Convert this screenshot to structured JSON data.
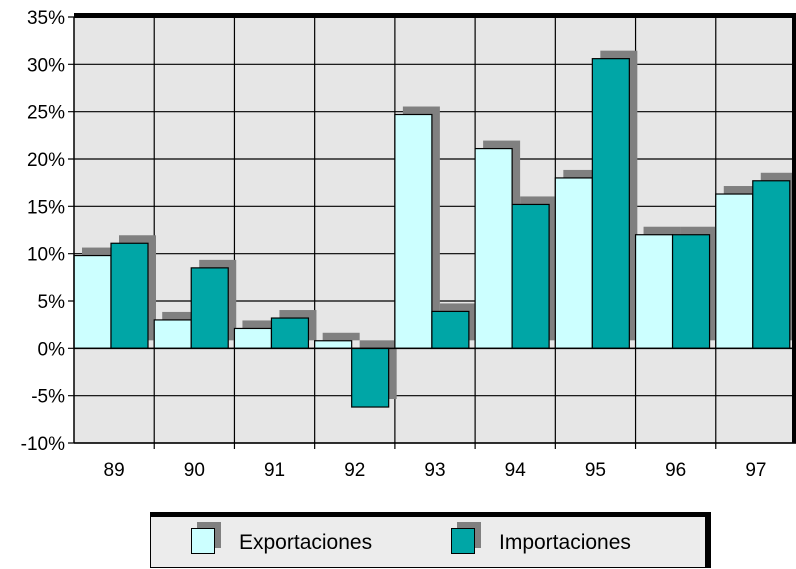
{
  "chart_data": {
    "type": "bar",
    "categories": [
      "89",
      "90",
      "91",
      "92",
      "93",
      "94",
      "95",
      "96",
      "97"
    ],
    "series": [
      {
        "name": "Exportaciones",
        "values": [
          9.8,
          3.0,
          2.1,
          0.8,
          24.7,
          21.1,
          18.0,
          12.0,
          16.3
        ],
        "color": "#ccffff"
      },
      {
        "name": "Importaciones",
        "values": [
          11.1,
          8.5,
          3.2,
          -6.2,
          3.9,
          15.2,
          30.6,
          12.0,
          17.7
        ],
        "color": "#00a6a6"
      }
    ],
    "ylim": [
      -10,
      35
    ],
    "yticks": [
      "35%",
      "30%",
      "25%",
      "20%",
      "15%",
      "10%",
      "5%",
      "0%",
      "-5%",
      "-10%"
    ],
    "ytick_values": [
      35,
      30,
      25,
      20,
      15,
      10,
      5,
      0,
      -5,
      -10
    ],
    "grid": true,
    "plot_background": "#e6e6e6",
    "shadow_color": "#808080",
    "legend_position": "bottom"
  }
}
